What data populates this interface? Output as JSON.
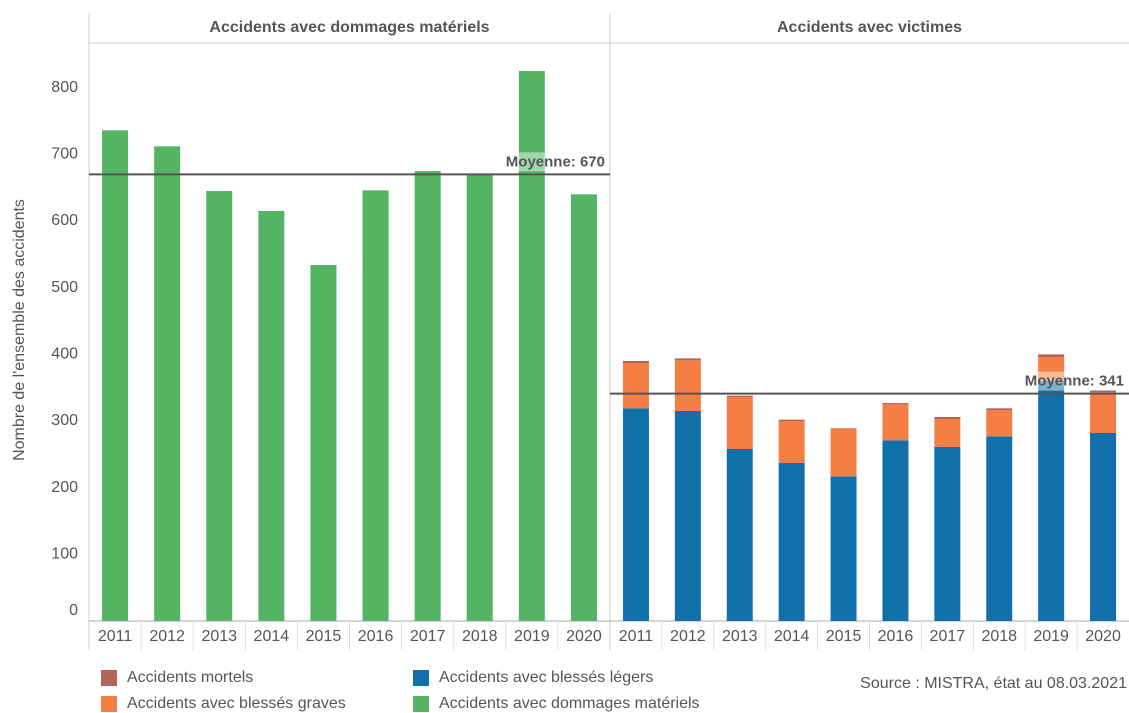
{
  "chart_data": [
    {
      "type": "stacked_bar",
      "title": "Accidents avec dommages matériels",
      "y_label": "Nombre de l'ensemble des accidents",
      "categories": [
        "2011",
        "2012",
        "2013",
        "2014",
        "2015",
        "2016",
        "2017",
        "2018",
        "2019",
        "2020"
      ],
      "series": [
        {
          "name": "Accidents avec dommages matériels",
          "color": "#55b464",
          "values": [
            736,
            712,
            645,
            615,
            534,
            646,
            675,
            669,
            825,
            640
          ]
        }
      ],
      "mean": 670,
      "mean_label": "Moyenne: 670",
      "ylim": [
        0,
        867
      ],
      "yticks": [
        0,
        100,
        200,
        300,
        400,
        500,
        600,
        700,
        800
      ]
    },
    {
      "type": "stacked_bar",
      "title": "Accidents avec victimes",
      "categories": [
        "2011",
        "2012",
        "2013",
        "2014",
        "2015",
        "2016",
        "2017",
        "2018",
        "2019",
        "2020"
      ],
      "series": [
        {
          "name": "Accidents avec blessés légers",
          "color": "#1170aa",
          "values": [
            319,
            315,
            258,
            237,
            217,
            271,
            261,
            277,
            360,
            282
          ]
        },
        {
          "name": "Accidents avec blessés graves",
          "color": "#f57e44",
          "values": [
            68,
            76,
            78,
            63,
            71,
            54,
            42,
            39,
            36,
            61
          ]
        },
        {
          "name": "Accidents mortels",
          "color": "#b5645b",
          "values": [
            3,
            3,
            2,
            2,
            1,
            2,
            3,
            3,
            4,
            3
          ]
        }
      ],
      "mean": 341,
      "mean_label": "Moyenne: 341",
      "ylim": [
        0,
        867
      ]
    }
  ],
  "source": "Source : MISTRA, état au 08.03.2021"
}
